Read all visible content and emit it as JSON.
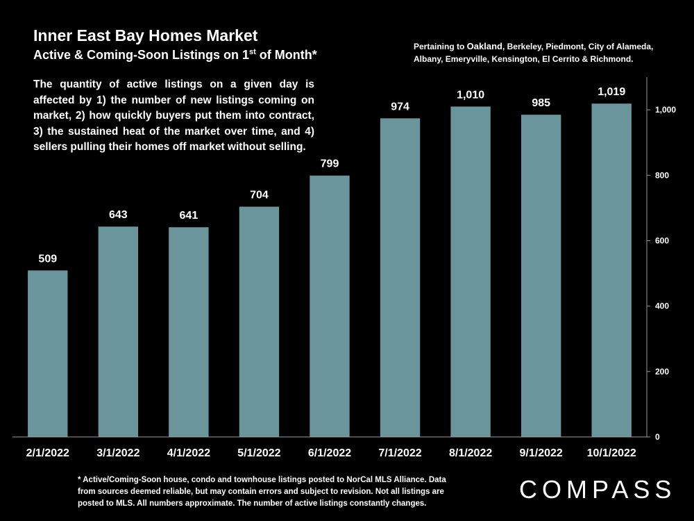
{
  "header": {
    "title": "Inner East Bay Homes Market",
    "subtitle_main": "Active & Coming-Soon Listings on 1",
    "subtitle_sup": "st",
    "subtitle_end": " of Month*"
  },
  "region_note": {
    "prefix": "Pertaining to ",
    "highlight": "Oakland",
    "line1_rest": ", Berkeley, Piedmont, City of Alameda,",
    "line2": "Albany, Emeryville, Kensington, El Cerrito & Richmond."
  },
  "description_lines": [
    "The quantity of active listings on a given day is",
    "affected by 1) the number of new listings coming on",
    "market, 2) how quickly buyers put them into contract,",
    "3) the sustained heat of the market over time, and 4)",
    "sellers pulling their homes off market without selling."
  ],
  "chart_data": {
    "type": "bar",
    "title": "Inner East Bay Homes Market",
    "subtitle": "Active & Coming-Soon Listings on 1st of Month*",
    "categories": [
      "2/1/2022",
      "3/1/2022",
      "4/1/2022",
      "5/1/2022",
      "6/1/2022",
      "7/1/2022",
      "8/1/2022",
      "9/1/2022",
      "10/1/2022"
    ],
    "values": [
      509,
      643,
      641,
      704,
      799,
      974,
      1010,
      985,
      1019
    ],
    "value_labels": [
      "509",
      "643",
      "641",
      "704",
      "799",
      "974",
      "1,010",
      "985",
      "1,019"
    ],
    "ylim": [
      0,
      1100
    ],
    "yticks": [
      0,
      200,
      400,
      600,
      800,
      1000
    ],
    "ytick_labels": [
      "0",
      "200",
      "400",
      "600",
      "800",
      "1,000"
    ],
    "y_axis_side": "right",
    "xlabel": "",
    "ylabel": "",
    "grid": false,
    "bar_color": "#6a959b"
  },
  "footnote_lines": [
    "* Active/Coming-Soon house, condo and townhouse listings posted to NorCal MLS Alliance.  Data",
    "from sources deemed reliable, but may contain errors and subject to revision.  Not all listings are",
    "posted to MLS. All numbers approximate. The number of active listings constantly changes."
  ],
  "logo": {
    "text": "COMPASS"
  },
  "colors": {
    "background": "#000000",
    "text": "#ffffff",
    "bar": "#6a959b",
    "axis": "#9a9a9a"
  }
}
